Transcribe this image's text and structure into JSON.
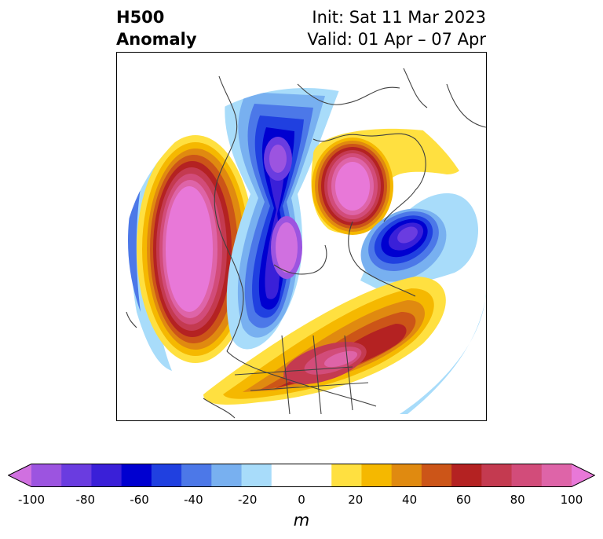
{
  "title": {
    "left_line1": "H500",
    "left_line2": "Anomaly",
    "right_line1": "Init: Sat 11 Mar 2023",
    "right_line2": "Valid: 01 Apr – 07 Apr"
  },
  "colorbar": {
    "unit": "m",
    "ticks": [
      "-100",
      "-80",
      "-60",
      "-40",
      "-20",
      "0",
      "20",
      "40",
      "60",
      "80",
      "100"
    ],
    "tick_values": [
      -100,
      -80,
      -60,
      -40,
      -20,
      0,
      20,
      40,
      60,
      80,
      100
    ],
    "colors": [
      "#d070e0",
      "#9c54e0",
      "#6a3ce0",
      "#3a20d8",
      "#0000d0",
      "#2040e0",
      "#4c78e8",
      "#78b0f0",
      "#a8dcfa",
      "#ffffff",
      "#ffffff",
      "#ffe040",
      "#f5b800",
      "#e08a10",
      "#cc5518",
      "#b42222",
      "#c43a50",
      "#d24c7a",
      "#de64a8",
      "#e878d8"
    ],
    "extend": "both"
  }
}
